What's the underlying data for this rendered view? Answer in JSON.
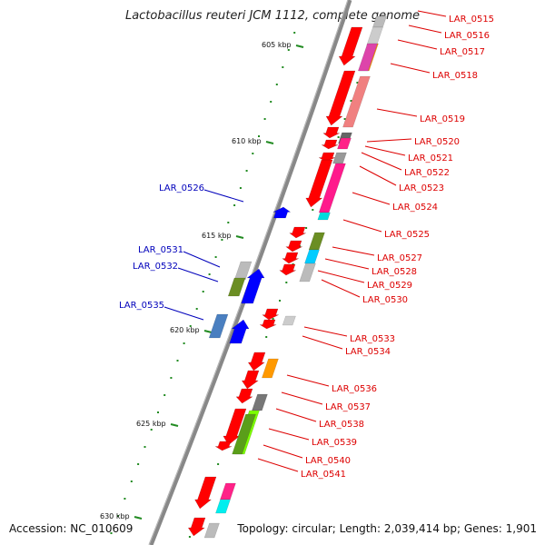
{
  "title": "Lactobacillus reuteri JCM 1112, complete genome",
  "accession": "Accession: NC_010609",
  "summary": "Topology: circular; Length: 2,039,414 bp; Genes: 1,901",
  "colors": {
    "forward_gene": "#ff0000",
    "reverse_gene": "#0000ff",
    "backbone": "#888888",
    "tick": "#228b22",
    "label_right": "#dd0000",
    "label_left": "#0000bb"
  },
  "scale_labels": [
    "605 kbp",
    "610 kbp",
    "615 kbp",
    "620 kbp",
    "625 kbp",
    "630 kbp"
  ],
  "right_labels": [
    "LAR_0515",
    "LAR_0516",
    "LAR_0517",
    "LAR_0518",
    "LAR_0519",
    "LAR_0520",
    "LAR_0521",
    "LAR_0522",
    "LAR_0523",
    "LAR_0524",
    "LAR_0525",
    "LAR_0527",
    "LAR_0528",
    "LAR_0529",
    "LAR_0530",
    "LAR_0533",
    "LAR_0534",
    "LAR_0536",
    "LAR_0537",
    "LAR_0538",
    "LAR_0539",
    "LAR_0540",
    "LAR_0541"
  ],
  "left_labels": [
    "LAR_0526",
    "LAR_0531",
    "LAR_0532",
    "LAR_0535"
  ]
}
